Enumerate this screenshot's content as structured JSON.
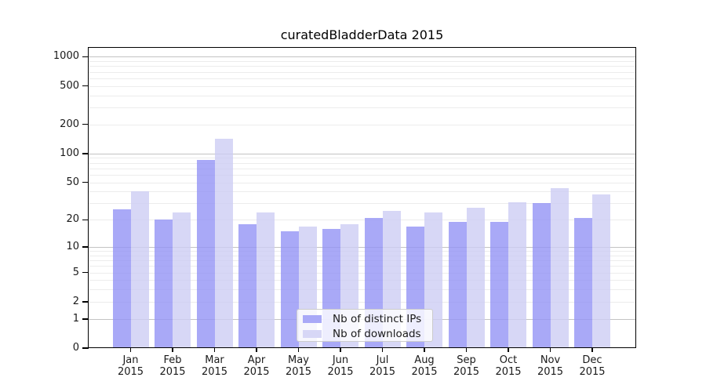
{
  "title": "curatedBladderData 2015",
  "chart_data": {
    "type": "bar",
    "title": "curatedBladderData 2015",
    "xlabel": "",
    "ylabel": "",
    "yscale": "log1p",
    "ylim": [
      0,
      1200
    ],
    "yticks": [
      0,
      1,
      2,
      5,
      10,
      20,
      50,
      100,
      200,
      500,
      1000
    ],
    "grid": "horizontal major gridlines at 1,10,100,1000 with light minor log gridlines",
    "legend_position": "lower center",
    "categories": [
      "Jan 2015",
      "Feb 2015",
      "Mar 2015",
      "Apr 2015",
      "May 2015",
      "Jun 2015",
      "Jul 2015",
      "Aug 2015",
      "Sep 2015",
      "Oct 2015",
      "Nov 2015",
      "Dec 2015"
    ],
    "series": [
      {
        "name": "Nb of distinct IPs",
        "key": "distinct-ips",
        "color": "#a9a9f7",
        "fill_rgba": "rgba(148,148,245,0.8)",
        "values": [
          26,
          20,
          86,
          18,
          15,
          16,
          21,
          17,
          19,
          19,
          30,
          21
        ]
      },
      {
        "name": "Nb of downloads",
        "key": "downloads",
        "color": "#d7d7f6",
        "fill_rgba": "rgba(205,205,244,0.8)",
        "values": [
          40,
          24,
          143,
          24,
          17,
          18,
          25,
          24,
          27,
          31,
          43,
          37
        ]
      }
    ]
  }
}
